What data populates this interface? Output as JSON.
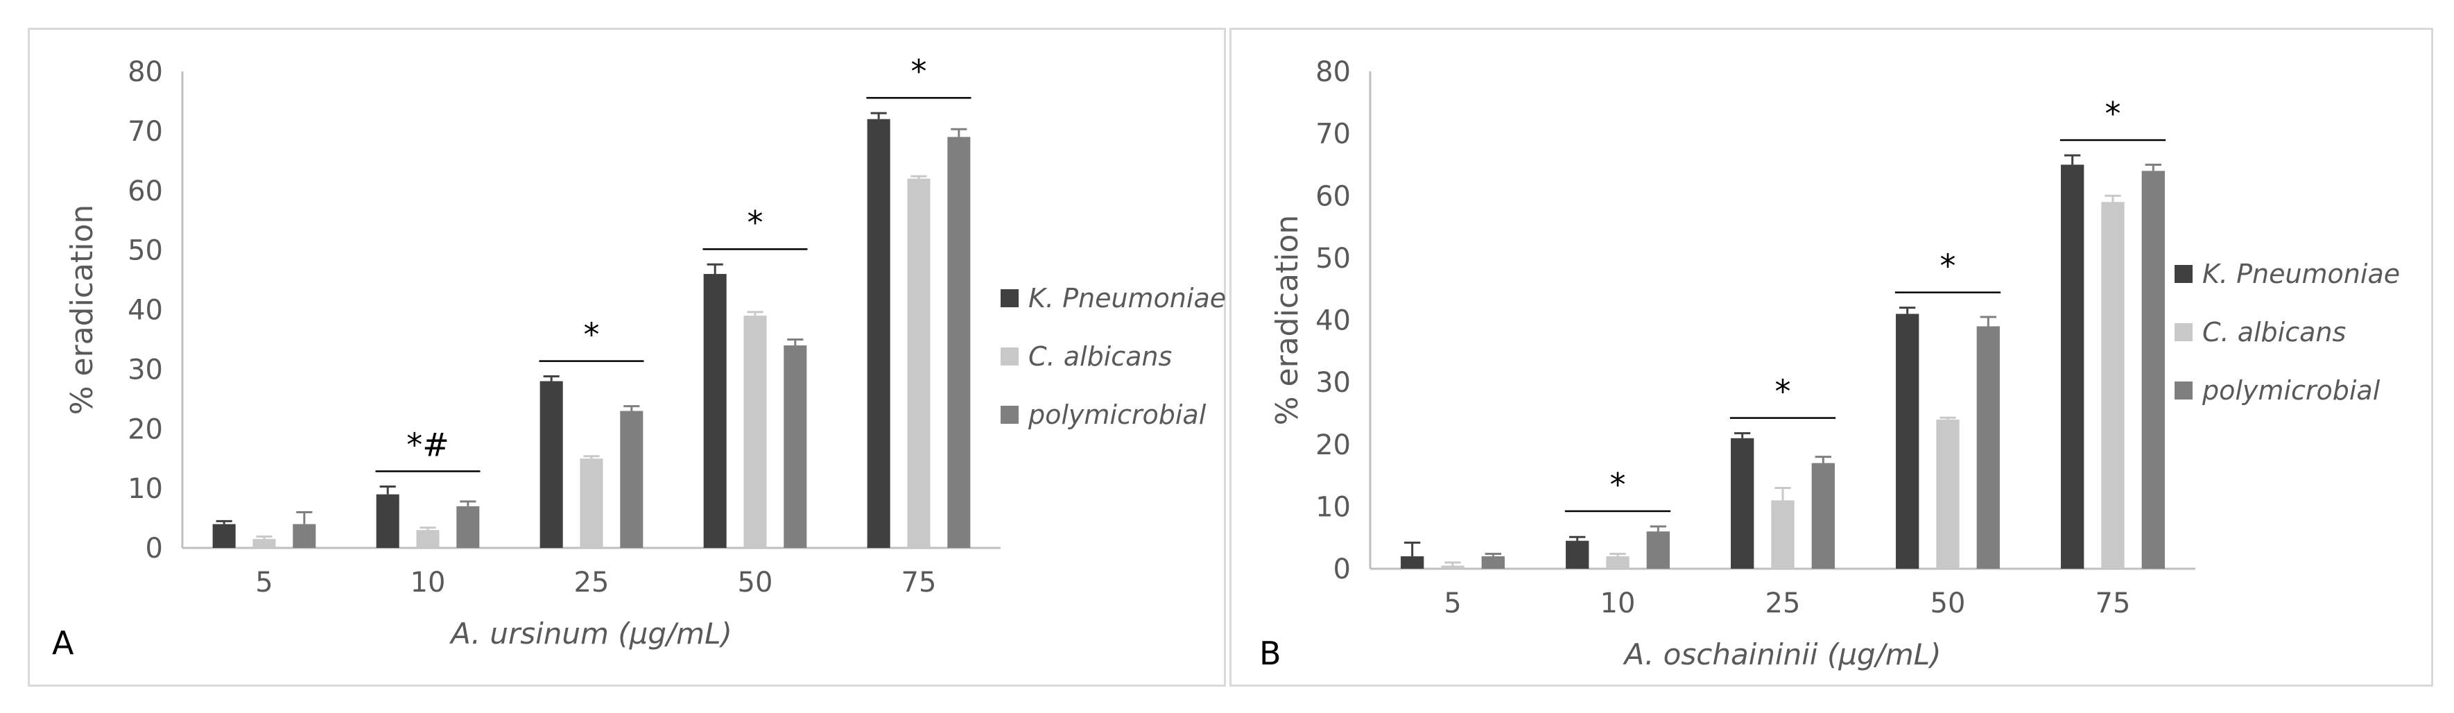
{
  "chart_data": [
    {
      "panel_label": "A",
      "type": "bar",
      "categories": [
        "5",
        "10",
        "25",
        "50",
        "75"
      ],
      "series": [
        {
          "name": "K. Pneumoniae",
          "color": "#404040",
          "values": [
            4,
            9,
            28,
            46,
            72
          ],
          "errors": [
            0.5,
            1.3,
            0.8,
            1.6,
            1.0
          ]
        },
        {
          "name": "C. albicans",
          "color": "#c8c8c8",
          "values": [
            1.5,
            3,
            15,
            39,
            62
          ],
          "errors": [
            0.4,
            0.4,
            0.4,
            0.6,
            0.4
          ]
        },
        {
          "name": "polymicrobial",
          "color": "#7f7f7f",
          "values": [
            4,
            7,
            23,
            34,
            69
          ],
          "errors": [
            2.0,
            0.8,
            0.8,
            1.0,
            1.3
          ]
        }
      ],
      "significance": [
        "",
        "*#",
        "*",
        "*",
        "*"
      ],
      "ylabel": "% eradication",
      "xlabel": "A. ursinum (μg/mL)",
      "ylim": [
        0,
        80
      ],
      "yticks": [
        0,
        10,
        20,
        30,
        40,
        50,
        60,
        70,
        80
      ],
      "legend_position": "right"
    },
    {
      "panel_label": "B",
      "type": "bar",
      "categories": [
        "5",
        "10",
        "25",
        "50",
        "75"
      ],
      "series": [
        {
          "name": "K. Pneumoniae",
          "color": "#404040",
          "values": [
            2,
            4.5,
            21,
            41,
            65
          ],
          "errors": [
            2.2,
            0.6,
            0.8,
            1.0,
            1.5
          ]
        },
        {
          "name": "C. albicans",
          "color": "#c8c8c8",
          "values": [
            0.5,
            2,
            11,
            24,
            59
          ],
          "errors": [
            0.5,
            0.4,
            2.0,
            0.3,
            1.0
          ]
        },
        {
          "name": "polymicrobial",
          "color": "#7f7f7f",
          "values": [
            2,
            6,
            17,
            39,
            64
          ],
          "errors": [
            0.4,
            0.8,
            1.0,
            1.5,
            1.0
          ]
        }
      ],
      "significance": [
        "",
        "*",
        "*",
        "*",
        "*"
      ],
      "ylabel": "% eradication",
      "xlabel": "A. oschaininii (μg/mL)",
      "ylim": [
        0,
        80
      ],
      "yticks": [
        0,
        10,
        20,
        30,
        40,
        50,
        60,
        70,
        80
      ],
      "legend_position": "right"
    }
  ]
}
